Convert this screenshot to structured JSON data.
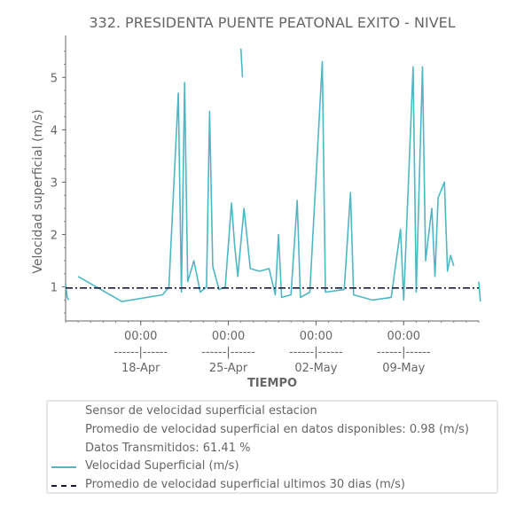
{
  "chart_data": {
    "type": "line",
    "title": "332. PRESIDENTA PUENTE PEATONAL EXITO - NIVEL",
    "xlabel": "TIEMPO",
    "ylabel": "Velocidad superficial (m/s)",
    "ylim": [
      0.35,
      5.8
    ],
    "yticks": [
      1,
      2,
      3,
      4,
      5
    ],
    "xlim": [
      "2023-04-12",
      "2023-05-15"
    ],
    "xticks": [
      {
        "date": "2023-04-18",
        "line1": "00:00",
        "line2": "------|------",
        "line3": "18-Apr"
      },
      {
        "date": "2023-04-25",
        "line1": "00:00",
        "line2": "------|------",
        "line3": "25-Apr"
      },
      {
        "date": "2023-05-02",
        "line1": "00:00",
        "line2": "------|------",
        "line3": "02-May"
      },
      {
        "date": "2023-05-09",
        "line1": "00:00",
        "line2": "------|------",
        "line3": "09-May"
      }
    ],
    "series": [
      {
        "name": "Velocidad Superficial (m/s)",
        "color": "#4db8c4",
        "style": "solid",
        "segments": [
          [
            [
              "2023-04-12 00:00",
              1.05
            ],
            [
              "2023-04-12 03:00",
              0.8
            ],
            [
              "2023-04-12 06:00",
              0.75
            ]
          ],
          [
            [
              "2023-04-13 00:00",
              1.2
            ],
            [
              "2023-04-16 12:00",
              0.72
            ],
            [
              "2023-04-19 18:00",
              0.85
            ],
            [
              "2023-04-20 06:00",
              1.0
            ],
            [
              "2023-04-21 00:00",
              4.7
            ],
            [
              "2023-04-21 06:00",
              0.9
            ],
            [
              "2023-04-21 12:00",
              4.9
            ],
            [
              "2023-04-21 18:00",
              1.1
            ],
            [
              "2023-04-22 06:00",
              1.5
            ],
            [
              "2023-04-22 18:00",
              0.9
            ],
            [
              "2023-04-23 06:00",
              1.0
            ],
            [
              "2023-04-23 12:00",
              4.35
            ],
            [
              "2023-04-23 18:00",
              1.4
            ],
            [
              "2023-04-24 06:00",
              0.95
            ],
            [
              "2023-04-24 18:00",
              1.0
            ],
            [
              "2023-04-25 06:00",
              2.6
            ],
            [
              "2023-04-25 12:00",
              1.8
            ],
            [
              "2023-04-25 18:00",
              1.2
            ],
            [
              "2023-04-26 06:00",
              2.5
            ],
            [
              "2023-04-26 18:00",
              1.35
            ],
            [
              "2023-04-27 12:00",
              1.3
            ],
            [
              "2023-04-28 06:00",
              1.35
            ],
            [
              "2023-04-28 18:00",
              0.85
            ],
            [
              "2023-04-29 00:00",
              2.0
            ],
            [
              "2023-04-29 06:00",
              0.8
            ],
            [
              "2023-04-30 00:00",
              0.85
            ],
            [
              "2023-04-30 12:00",
              2.65
            ],
            [
              "2023-04-30 18:00",
              0.8
            ],
            [
              "2023-05-01 12:00",
              0.9
            ],
            [
              "2023-05-02 12:00",
              5.3
            ],
            [
              "2023-05-02 18:00",
              0.9
            ],
            [
              "2023-05-04 06:00",
              0.95
            ],
            [
              "2023-05-04 18:00",
              2.8
            ],
            [
              "2023-05-05 00:00",
              0.85
            ],
            [
              "2023-05-06 12:00",
              0.75
            ],
            [
              "2023-05-08 00:00",
              0.8
            ],
            [
              "2023-05-08 18:00",
              2.1
            ],
            [
              "2023-05-09 00:00",
              0.75
            ],
            [
              "2023-05-09 18:00",
              5.2
            ],
            [
              "2023-05-10 00:00",
              0.9
            ],
            [
              "2023-05-10 12:00",
              5.2
            ],
            [
              "2023-05-10 18:00",
              1.5
            ],
            [
              "2023-05-11 06:00",
              2.5
            ],
            [
              "2023-05-11 12:00",
              1.2
            ],
            [
              "2023-05-11 18:00",
              2.7
            ],
            [
              "2023-05-12 06:00",
              3.0
            ],
            [
              "2023-05-12 12:00",
              1.3
            ],
            [
              "2023-05-12 18:00",
              1.6
            ],
            [
              "2023-05-13 00:00",
              1.4
            ]
          ],
          [
            [
              "2023-04-26 00:00",
              5.55
            ],
            [
              "2023-04-26 03:00",
              5.0
            ]
          ],
          [
            [
              "2023-05-15 00:00",
              1.1
            ],
            [
              "2023-05-15 03:00",
              0.72
            ]
          ]
        ]
      },
      {
        "name": "Promedio de velocidad superficial ultimos 30 dias (m/s)",
        "color": "#1a1a3e",
        "style": "dashdot",
        "value": 0.98
      }
    ],
    "legend": {
      "placement": "bottom",
      "entries": [
        "Sensor de velocidad superficial estacion",
        "Promedio de velocidad superficial en datos disponibles: 0.98 (m/s)",
        "Datos Transmitidos: 61.41 %",
        "Velocidad Superficial (m/s)",
        "Promedio de velocidad superficial ultimos 30 dias (m/s)"
      ]
    },
    "grid": false
  }
}
